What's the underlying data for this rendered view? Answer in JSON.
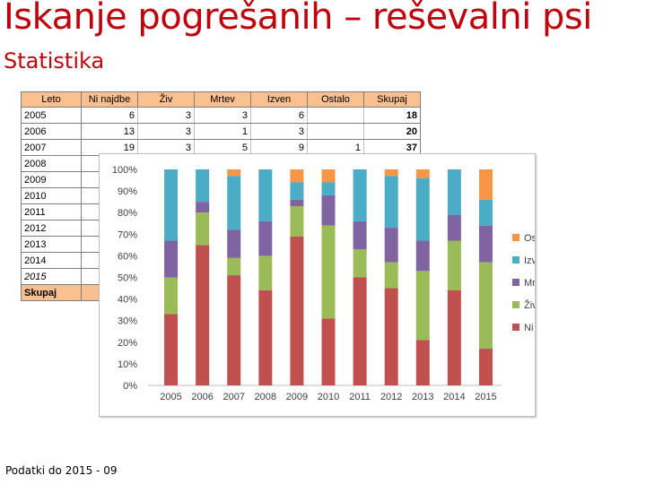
{
  "title": "Iskanje pogrešanih – reševalni psi",
  "subtitle": "Statistika",
  "footer": "Podatki do 2015 - 09",
  "table": {
    "headers": [
      "Leto",
      "Ni najdbe",
      "Živ",
      "Mrtev",
      "Izven",
      "Ostalo",
      "Skupaj"
    ],
    "rows": [
      [
        "2005",
        "6",
        "3",
        "3",
        "6",
        "",
        "18"
      ],
      [
        "2006",
        "13",
        "3",
        "1",
        "3",
        "",
        "20"
      ],
      [
        "2007",
        "19",
        "3",
        "5",
        "9",
        "1",
        "37"
      ],
      [
        "2008",
        "",
        "",
        "",
        "",
        "",
        ""
      ],
      [
        "2009",
        "",
        "",
        "",
        "",
        "",
        ""
      ],
      [
        "2010",
        "",
        "",
        "",
        "",
        "",
        ""
      ],
      [
        "2011",
        "",
        "",
        "",
        "",
        "",
        ""
      ],
      [
        "2012",
        "",
        "",
        "",
        "",
        "",
        ""
      ],
      [
        "2013",
        "",
        "",
        "",
        "",
        "",
        ""
      ],
      [
        "2014",
        "",
        "",
        "",
        "",
        "",
        ""
      ],
      [
        "2015",
        "",
        "",
        "",
        "",
        "",
        ""
      ]
    ],
    "total_label": "Skupaj",
    "header_color": "#fac090"
  },
  "chart_data": {
    "type": "bar",
    "stacked": true,
    "percent_stacked": true,
    "categories": [
      "2005",
      "2006",
      "2007",
      "2008",
      "2009",
      "2010",
      "2011",
      "2012",
      "2013",
      "2014",
      "2015"
    ],
    "series": [
      {
        "name": "Ni najdbe",
        "color": "#c0504d",
        "values": [
          33,
          65,
          51,
          44,
          69,
          31,
          50,
          45,
          21,
          44,
          17
        ]
      },
      {
        "name": "Živ",
        "color": "#9bbb59",
        "values": [
          17,
          15,
          8,
          16,
          14,
          43,
          13,
          12,
          32,
          23,
          40
        ]
      },
      {
        "name": "Mrtev",
        "color": "#8064a2",
        "values": [
          17,
          5,
          13,
          16,
          3,
          14,
          13,
          16,
          14,
          12,
          17
        ]
      },
      {
        "name": "Izven",
        "color": "#4bacc6",
        "values": [
          33,
          15,
          25,
          24,
          8,
          6,
          24,
          24,
          29,
          21,
          12
        ]
      },
      {
        "name": "Ostalo",
        "color": "#f79646",
        "values": [
          0,
          0,
          3,
          0,
          6,
          6,
          0,
          3,
          4,
          0,
          14
        ]
      }
    ],
    "yticks": [
      "0%",
      "10%",
      "20%",
      "30%",
      "40%",
      "50%",
      "60%",
      "70%",
      "80%",
      "90%",
      "100%"
    ],
    "ylim": [
      0,
      100
    ],
    "grid": false,
    "legend": "right",
    "legend_order": [
      "Ostalo",
      "Izven",
      "Mrtev",
      "Živ",
      "Ni najdbe"
    ]
  }
}
